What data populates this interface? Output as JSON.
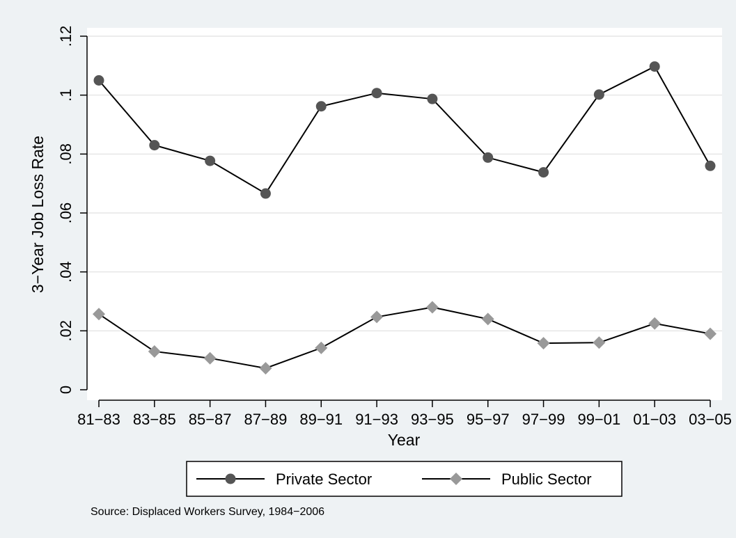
{
  "chart_data": {
    "type": "line",
    "xlabel": "Year",
    "ylabel": "3−Year Job Loss Rate",
    "categories": [
      "81−83",
      "83−85",
      "85−87",
      "87−89",
      "89−91",
      "91−93",
      "93−95",
      "95−97",
      "97−99",
      "99−01",
      "01−03",
      "03−05"
    ],
    "ylim": [
      0,
      0.12
    ],
    "yticks": [
      0,
      0.02,
      0.04,
      0.06,
      0.08,
      0.1,
      0.12
    ],
    "ytick_labels": [
      "0",
      ".02",
      ".04",
      ".06",
      ".08",
      ".1",
      ".12"
    ],
    "grid": true,
    "legend_position": "bottom",
    "series": [
      {
        "name": "Private Sector",
        "marker": "circle",
        "marker_color": "#555555",
        "line_color": "#000000",
        "values": [
          0.105,
          0.083,
          0.0777,
          0.0666,
          0.0962,
          0.1007,
          0.0987,
          0.0788,
          0.0738,
          0.1002,
          0.1097,
          0.076
        ]
      },
      {
        "name": "Public Sector",
        "marker": "diamond",
        "marker_color": "#999999",
        "line_color": "#000000",
        "values": [
          0.0257,
          0.013,
          0.0107,
          0.0073,
          0.0142,
          0.0247,
          0.028,
          0.024,
          0.0158,
          0.016,
          0.0225,
          0.019
        ]
      }
    ],
    "note": "Source: Displaced Workers Survey, 1984−2006"
  },
  "colors": {
    "background": "#eef2f4",
    "plot_area": "#ffffff",
    "grid": "#e6e6e6"
  }
}
